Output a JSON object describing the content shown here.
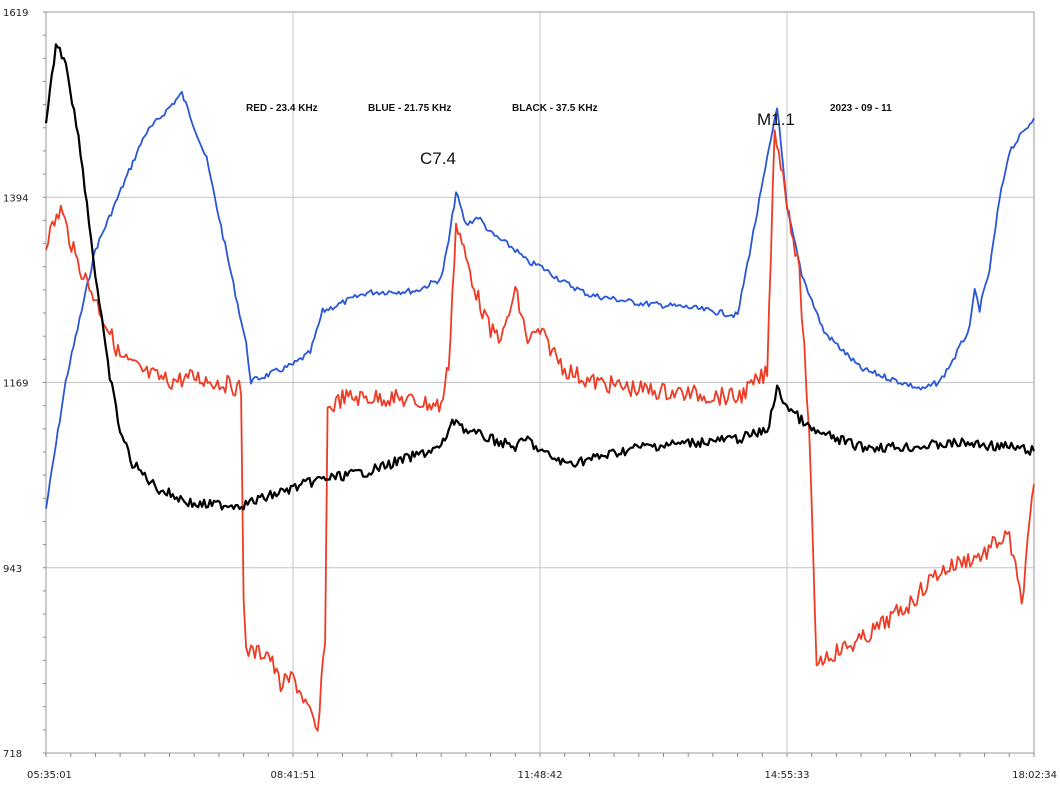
{
  "chart_data": {
    "type": "line",
    "title": "",
    "xlabel": "",
    "ylabel": "",
    "header": {
      "red": "RED - 23.4 KHz",
      "blue": "BLUE - 21.75 KHz",
      "black": "BLACK - 37.5 KHz",
      "date": "2023 - 09 - 11"
    },
    "ylim": [
      718,
      1619
    ],
    "y_ticks": [
      "1619",
      "1394",
      "1169",
      "943",
      "718"
    ],
    "x_ticks": [
      "05:35:01",
      "08:41:51",
      "11:48:42",
      "14:55:33",
      "18:02:34"
    ],
    "x_range": [
      0,
      4
    ],
    "grid": true,
    "annotations": [
      {
        "text": "C7.4",
        "x": 1.64,
        "y": 1440
      },
      {
        "text": "M1.1",
        "x": 2.94,
        "y": 1534
      }
    ],
    "series": [
      {
        "color": "#2a57d6",
        "x": [
          0.0,
          0.08,
          0.2,
          0.4,
          0.55,
          0.65,
          0.75,
          0.8,
          0.81,
          0.83,
          0.9,
          1.0,
          1.07,
          1.12,
          1.3,
          1.5,
          1.6,
          1.63,
          1.66,
          1.7,
          1.75,
          1.8,
          1.85,
          1.9,
          1.95,
          2.0,
          2.1,
          2.2,
          2.4,
          2.6,
          2.8,
          2.92,
          2.96,
          3.0,
          3.06,
          3.15,
          3.3,
          3.45,
          3.55,
          3.62,
          3.68,
          3.74,
          3.76,
          3.78,
          3.82,
          3.86,
          3.9,
          4.0
        ],
        "y": [
          1015,
          1170,
          1330,
          1470,
          1520,
          1440,
          1300,
          1230,
          1215,
          1170,
          1178,
          1190,
          1205,
          1255,
          1278,
          1280,
          1295,
          1340,
          1400,
          1360,
          1370,
          1350,
          1340,
          1330,
          1315,
          1310,
          1290,
          1275,
          1265,
          1260,
          1250,
          1440,
          1505,
          1380,
          1300,
          1230,
          1185,
          1170,
          1160,
          1170,
          1200,
          1235,
          1280,
          1258,
          1305,
          1390,
          1450,
          1490
        ]
      },
      {
        "color": "#ef3b24",
        "x": [
          0.0,
          0.06,
          0.12,
          0.2,
          0.3,
          0.4,
          0.5,
          0.6,
          0.75,
          0.79,
          0.8,
          0.81,
          0.83,
          0.9,
          0.95,
          1.0,
          1.05,
          1.1,
          1.13,
          1.14,
          1.2,
          1.4,
          1.6,
          1.63,
          1.66,
          1.7,
          1.75,
          1.8,
          1.85,
          1.9,
          1.95,
          2.0,
          2.1,
          2.2,
          2.4,
          2.6,
          2.8,
          2.92,
          2.95,
          3.0,
          3.05,
          3.07,
          3.09,
          3.12,
          3.3,
          3.5,
          3.6,
          3.7,
          3.8,
          3.85,
          3.9,
          3.95,
          4.0
        ],
        "y": [
          1340,
          1380,
          1320,
          1270,
          1200,
          1180,
          1170,
          1175,
          1165,
          1160,
          900,
          850,
          840,
          840,
          800,
          810,
          780,
          740,
          860,
          1135,
          1150,
          1150,
          1140,
          1190,
          1360,
          1320,
          1270,
          1230,
          1225,
          1280,
          1220,
          1230,
          1185,
          1170,
          1160,
          1155,
          1150,
          1180,
          1480,
          1390,
          1300,
          1210,
          1100,
          830,
          855,
          900,
          935,
          950,
          960,
          975,
          980,
          900,
          1045
        ]
      },
      {
        "color": "#000000",
        "x": [
          0.0,
          0.04,
          0.08,
          0.14,
          0.2,
          0.25,
          0.3,
          0.35,
          0.45,
          0.6,
          0.8,
          0.9,
          1.0,
          1.1,
          1.3,
          1.5,
          1.6,
          1.63,
          1.66,
          1.7,
          1.75,
          1.8,
          1.9,
          1.95,
          2.0,
          2.1,
          2.2,
          2.4,
          2.6,
          2.8,
          2.92,
          2.96,
          3.0,
          3.1,
          3.3,
          3.5,
          3.7,
          3.9,
          4.0
        ],
        "y": [
          1480,
          1580,
          1560,
          1450,
          1300,
          1190,
          1110,
          1070,
          1040,
          1020,
          1020,
          1030,
          1040,
          1050,
          1060,
          1080,
          1090,
          1110,
          1125,
          1110,
          1105,
          1100,
          1090,
          1100,
          1085,
          1070,
          1075,
          1090,
          1095,
          1100,
          1110,
          1160,
          1140,
          1110,
          1090,
          1090,
          1095,
          1090,
          1085
        ]
      }
    ]
  }
}
